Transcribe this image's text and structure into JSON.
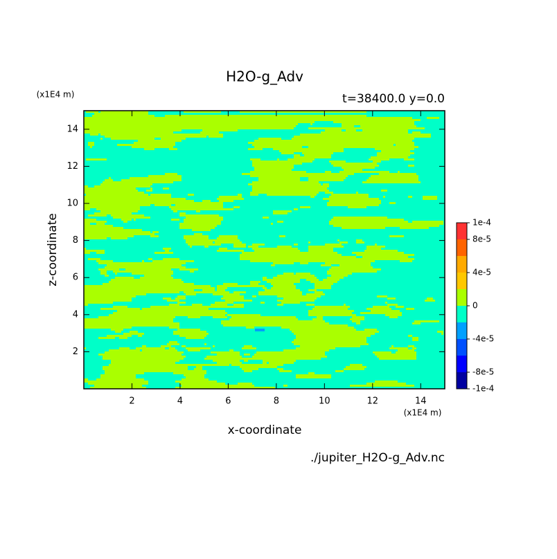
{
  "chart_data": {
    "type": "contour",
    "title": "H2O-g_Adv",
    "subtitle": "t=38400.0 y=0.0",
    "x_label": "x-coordinate",
    "y_label": "z-coordinate",
    "x_unit": "(x1E4 m)",
    "y_unit": "(x1E4 m)",
    "footer": "./jupiter_H2O-g_Adv.nc",
    "xlim": [
      0,
      15
    ],
    "ylim": [
      0,
      15
    ],
    "xticks": [
      2,
      4,
      6,
      8,
      10,
      12,
      14
    ],
    "yticks": [
      2,
      4,
      6,
      8,
      10,
      12,
      14
    ],
    "colorbar": {
      "levels": [
        -0.0001,
        -8e-05,
        -6e-05,
        -4e-05,
        -2e-05,
        0,
        2e-05,
        4e-05,
        6e-05,
        8e-05,
        0.0001
      ],
      "colors": [
        "#0000a0",
        "#0000ff",
        "#0050ff",
        "#00a0ff",
        "#00ffc8",
        "#aaff00",
        "#ffc800",
        "#ffaa00",
        "#ff6400",
        "#ff3232"
      ],
      "ticks": [
        {
          "value": 0.0001,
          "label": "1e-4"
        },
        {
          "value": 8e-05,
          "label": "8e-5"
        },
        {
          "value": 4e-05,
          "label": "4e-5"
        },
        0,
        {
          "value": -4e-05,
          "label": "-4e-5"
        },
        {
          "value": -8e-05,
          "label": "-8e-5"
        },
        {
          "value": -0.0001,
          "label": "-1e-4"
        }
      ]
    }
  }
}
